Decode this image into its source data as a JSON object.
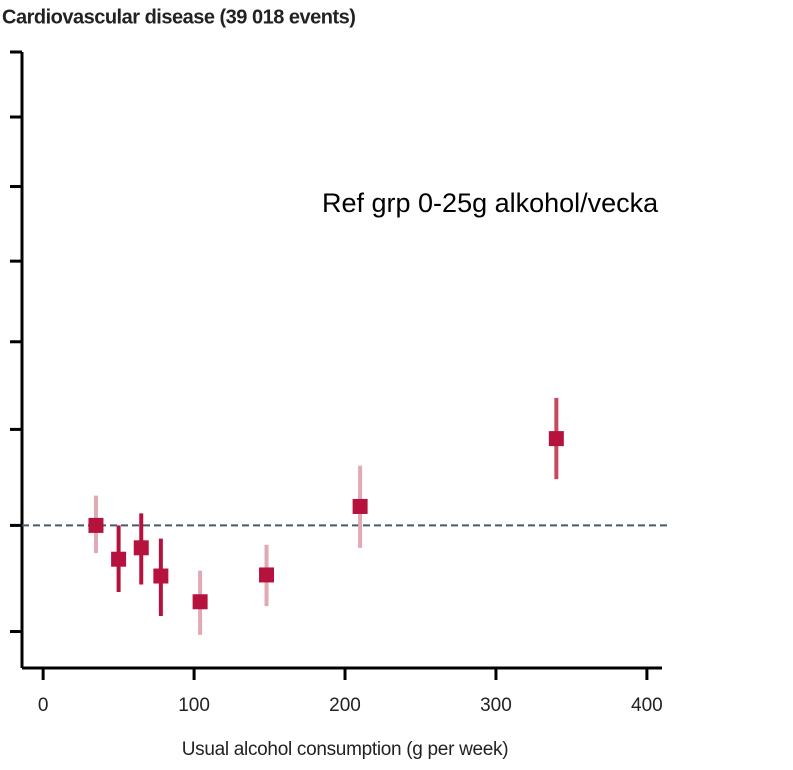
{
  "chart_data": {
    "type": "scatter",
    "title": "Cardiovascular disease (39 018 events)",
    "x_label": "Usual alcohol consumption (g per week)",
    "annotation": "Ref grp 0-25g alkohol/vecka",
    "x": [
      35,
      50,
      65,
      78,
      104,
      148,
      210,
      340
    ],
    "values": [
      1.0,
      0.967,
      0.978,
      0.951,
      0.927,
      0.952,
      1.019,
      1.09
    ],
    "error_low": [
      0.973,
      0.936,
      0.943,
      0.914,
      0.897,
      0.923,
      0.978,
      1.047
    ],
    "error_high": [
      1.03,
      1.0,
      1.012,
      0.987,
      0.956,
      0.981,
      1.061,
      1.135
    ],
    "color": "#b5123e",
    "error_colors": [
      "#e0a9b3",
      "#b5123e",
      "#b5123e",
      "#b5123e",
      "#e0a9b3",
      "#e0a9b3",
      "#e0a9b3",
      "#c8485e"
    ],
    "reference_line": 1,
    "log_y": true,
    "xlim": [
      -14,
      410
    ],
    "xticks": [
      0,
      100,
      200,
      300,
      400
    ],
    "ylim": [
      0.868,
      1.6
    ],
    "yticks": [
      0.9,
      1.0,
      1.1,
      1.2,
      1.3,
      1.4,
      1.5,
      1.6
    ]
  }
}
